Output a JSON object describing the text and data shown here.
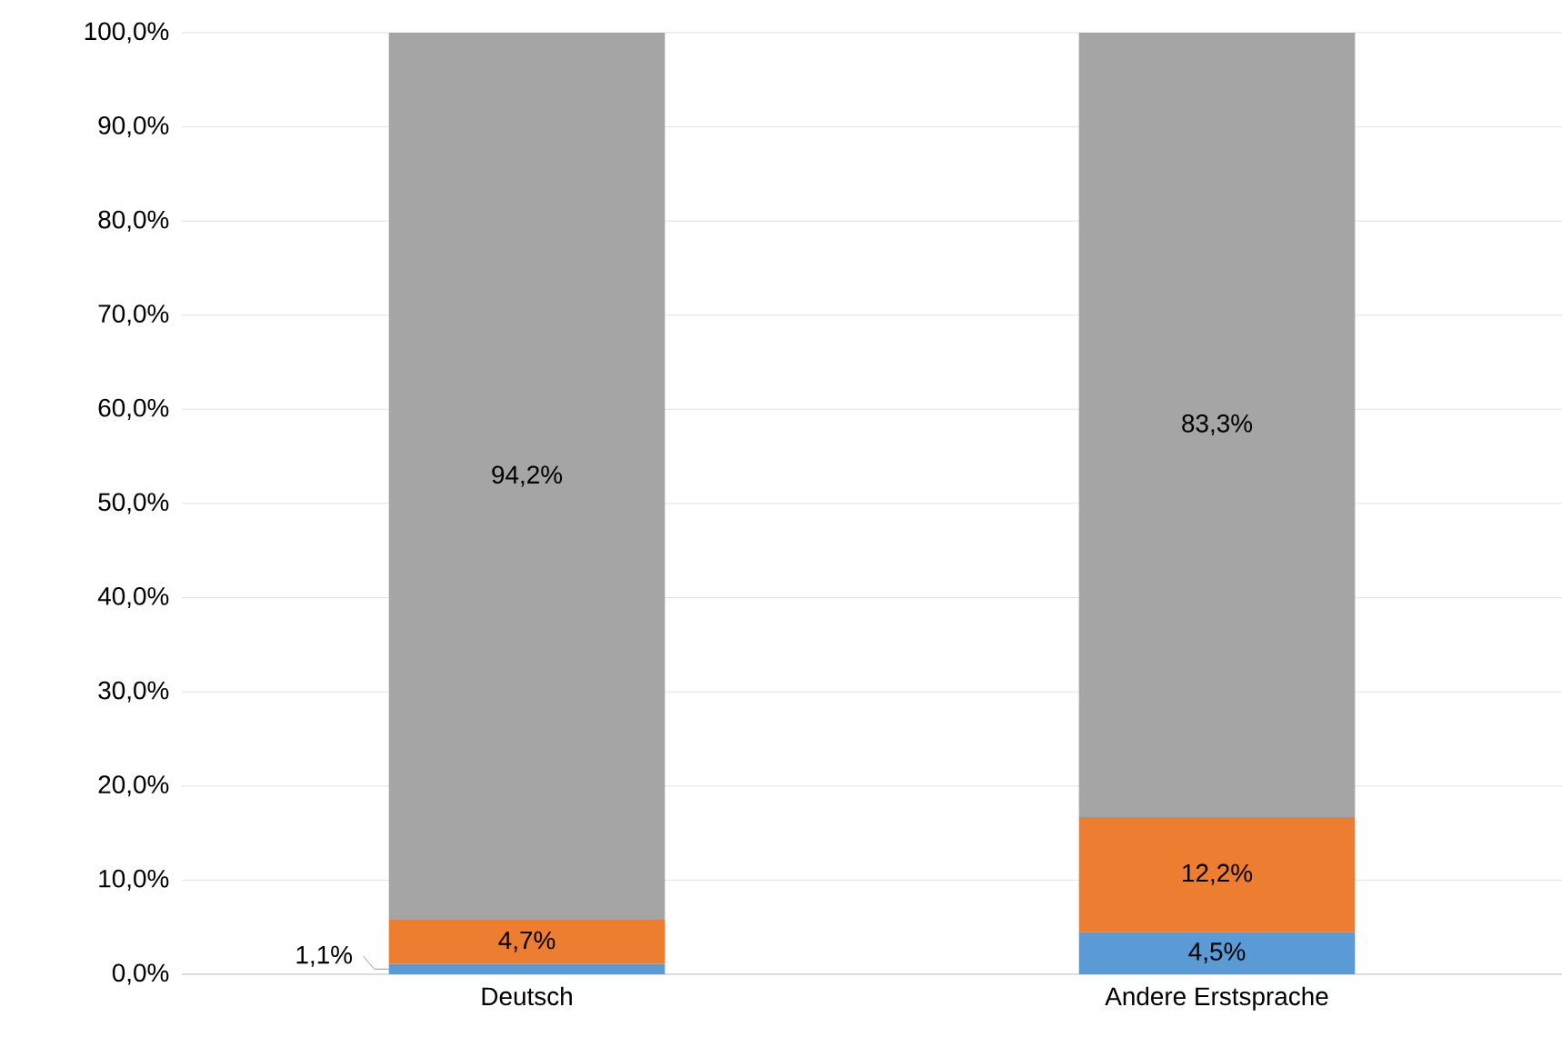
{
  "chart_data": {
    "type": "bar",
    "stacked": true,
    "categories": [
      "Deutsch",
      "Andere Erstsprache"
    ],
    "series": [
      {
        "color": "#5b9bd5",
        "values": [
          1.1,
          4.5
        ],
        "value_labels": [
          "1,1%",
          "4,5%"
        ]
      },
      {
        "color": "#ed7d31",
        "values": [
          4.7,
          12.2
        ],
        "value_labels": [
          "4,7%",
          "12,2%"
        ]
      },
      {
        "color": "#a5a5a5",
        "values": [
          94.2,
          83.3
        ],
        "value_labels": [
          "94,2%",
          "83,3%"
        ]
      }
    ],
    "ylim": [
      0,
      100
    ],
    "yticks": [
      {
        "value": 0,
        "label": "0,0%"
      },
      {
        "value": 10,
        "label": "10,0%"
      },
      {
        "value": 20,
        "label": "20,0%"
      },
      {
        "value": 30,
        "label": "30,0%"
      },
      {
        "value": 40,
        "label": "40,0%"
      },
      {
        "value": 50,
        "label": "50,0%"
      },
      {
        "value": 60,
        "label": "60,0%"
      },
      {
        "value": 70,
        "label": "70,0%"
      },
      {
        "value": 80,
        "label": "80,0%"
      },
      {
        "value": 90,
        "label": "90,0%"
      },
      {
        "value": 100,
        "label": "100,0%"
      }
    ],
    "grid": "y"
  }
}
